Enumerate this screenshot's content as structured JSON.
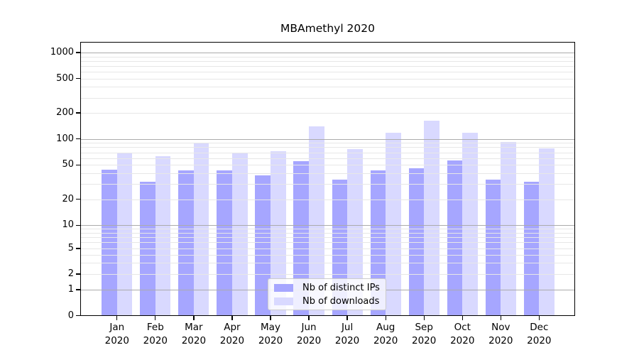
{
  "title": "MBAmethyl 2020",
  "colors": {
    "distinct_ips": "#A6A6FF",
    "downloads": "#D9D9FF",
    "grid_major": "#ababab",
    "grid_minor": "#e7e7e7",
    "axis": "#000000",
    "legend_border": "#cccccc"
  },
  "legend": {
    "items": [
      {
        "label": "Nb of distinct IPs",
        "color_key": "distinct_ips"
      },
      {
        "label": "Nb of downloads",
        "color_key": "downloads"
      }
    ]
  },
  "y_axis": {
    "ticks": [
      {
        "label": "1000",
        "value": 1000
      },
      {
        "label": "500",
        "value": 500
      },
      {
        "label": "200",
        "value": 200
      },
      {
        "label": "100",
        "value": 100
      },
      {
        "label": "50",
        "value": 50
      },
      {
        "label": "20",
        "value": 20
      },
      {
        "label": "10",
        "value": 10
      },
      {
        "label": "5",
        "value": 5
      },
      {
        "label": "2",
        "value": 2
      },
      {
        "label": "1",
        "value": 1
      },
      {
        "label": "0",
        "value": 0
      }
    ]
  },
  "x_axis": {
    "categories": [
      {
        "month": "Jan",
        "year": "2020"
      },
      {
        "month": "Feb",
        "year": "2020"
      },
      {
        "month": "Mar",
        "year": "2020"
      },
      {
        "month": "Apr",
        "year": "2020"
      },
      {
        "month": "May",
        "year": "2020"
      },
      {
        "month": "Jun",
        "year": "2020"
      },
      {
        "month": "Jul",
        "year": "2020"
      },
      {
        "month": "Aug",
        "year": "2020"
      },
      {
        "month": "Sep",
        "year": "2020"
      },
      {
        "month": "Oct",
        "year": "2020"
      },
      {
        "month": "Nov",
        "year": "2020"
      },
      {
        "month": "Dec",
        "year": "2020"
      }
    ]
  },
  "chart_data": {
    "type": "bar",
    "title": "MBAmethyl 2020",
    "categories": [
      "Jan 2020",
      "Feb 2020",
      "Mar 2020",
      "Apr 2020",
      "May 2020",
      "Jun 2020",
      "Jul 2020",
      "Aug 2020",
      "Sep 2020",
      "Oct 2020",
      "Nov 2020",
      "Dec 2020"
    ],
    "series": [
      {
        "name": "Nb of distinct IPs",
        "color_key": "distinct_ips",
        "values": [
          44,
          32,
          43,
          43,
          38,
          55,
          34,
          43,
          46,
          56,
          34,
          32
        ]
      },
      {
        "name": "Nb of downloads",
        "color_key": "downloads",
        "values": [
          70,
          63,
          90,
          70,
          72,
          139,
          76,
          117,
          163,
          118,
          92,
          78
        ]
      }
    ],
    "xlabel": "",
    "ylabel": "",
    "yscale": "symlog",
    "y_major_ticks": [
      0,
      1,
      2,
      5,
      10,
      20,
      50,
      100,
      200,
      500,
      1000
    ],
    "ylim": [
      0,
      1400
    ],
    "grid": "horizontal, drawn over bars, minor log subdivisions",
    "legend_position": "lower center"
  }
}
